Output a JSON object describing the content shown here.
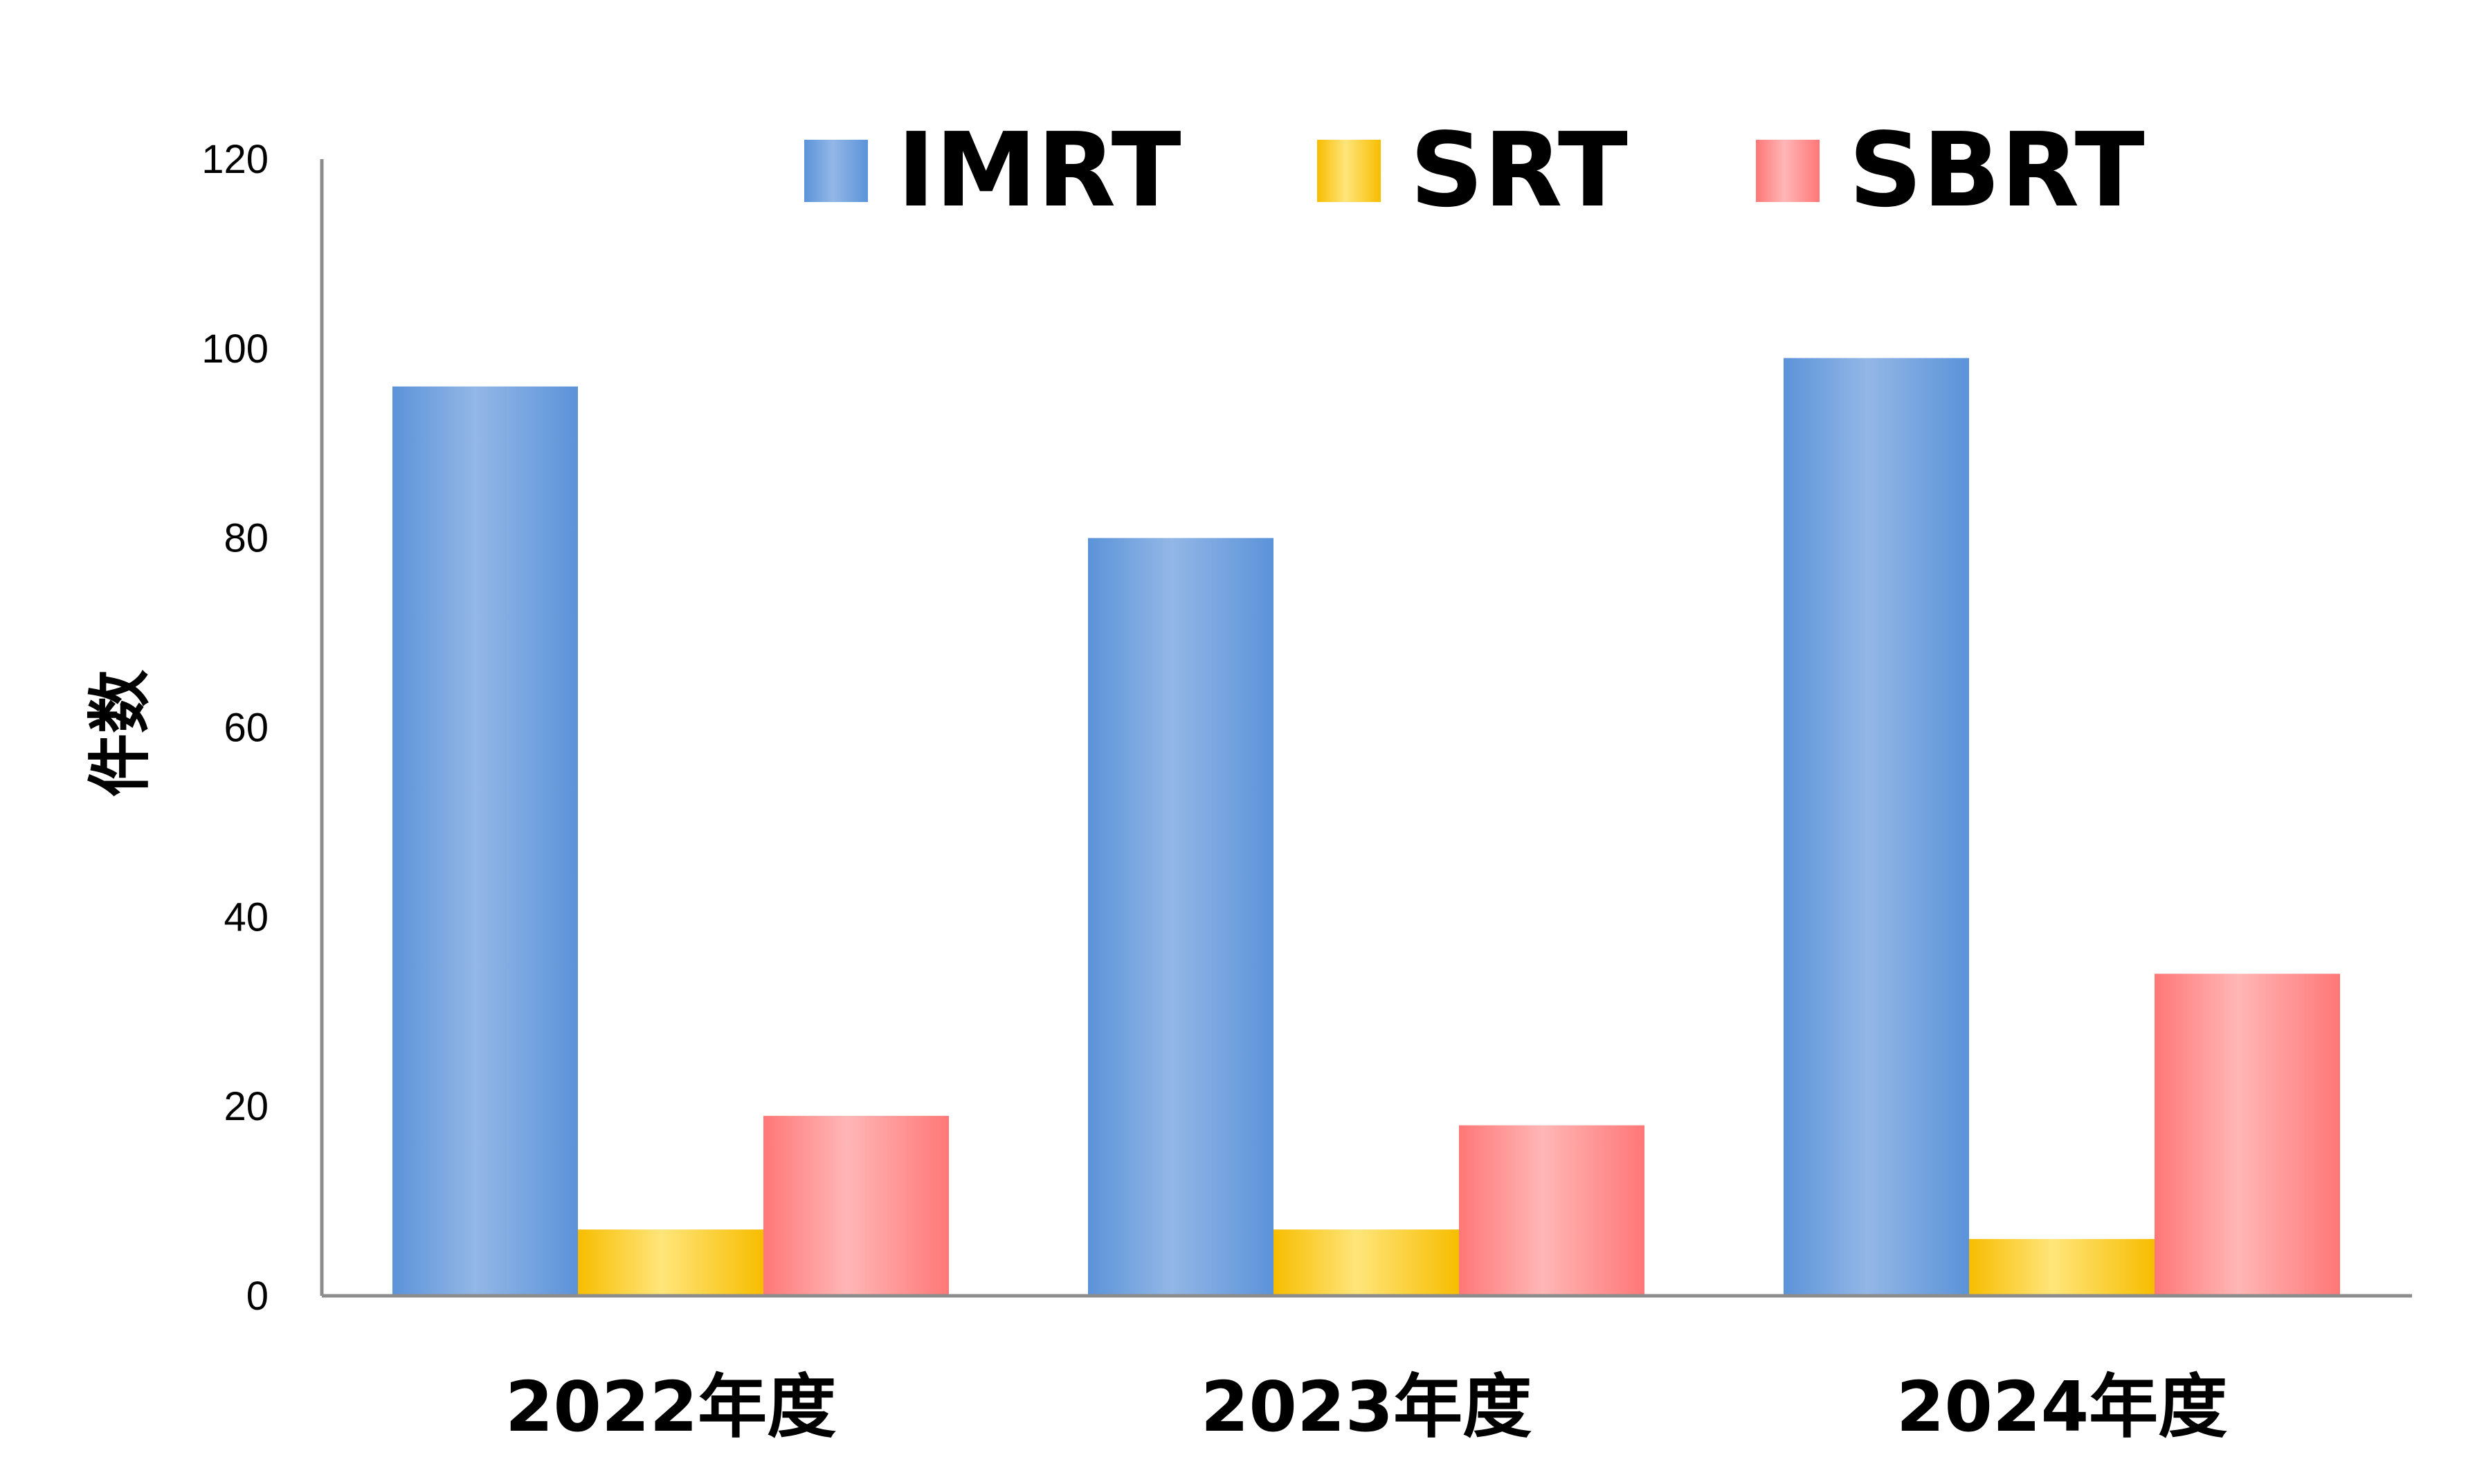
{
  "chart_data": {
    "type": "bar",
    "title": "",
    "xlabel": "",
    "ylabel": "件数",
    "categories": [
      "2022年度",
      "2023年度",
      "2024年度"
    ],
    "series": [
      {
        "name": "IMRT",
        "values": [
          96,
          80,
          99
        ],
        "color": "#5b93d9",
        "highlight": "#93b7e6"
      },
      {
        "name": "SRT",
        "values": [
          7,
          7,
          6
        ],
        "color": "#f7bd00",
        "highlight": "#ffe57a"
      },
      {
        "name": "SBRT",
        "values": [
          19,
          18,
          34
        ],
        "color": "#ff7777",
        "highlight": "#ffb6b6"
      }
    ],
    "ylim": [
      0,
      120
    ],
    "yticks": [
      0,
      20,
      40,
      60,
      80,
      100,
      120
    ],
    "grid": false,
    "legend_position": "top"
  }
}
